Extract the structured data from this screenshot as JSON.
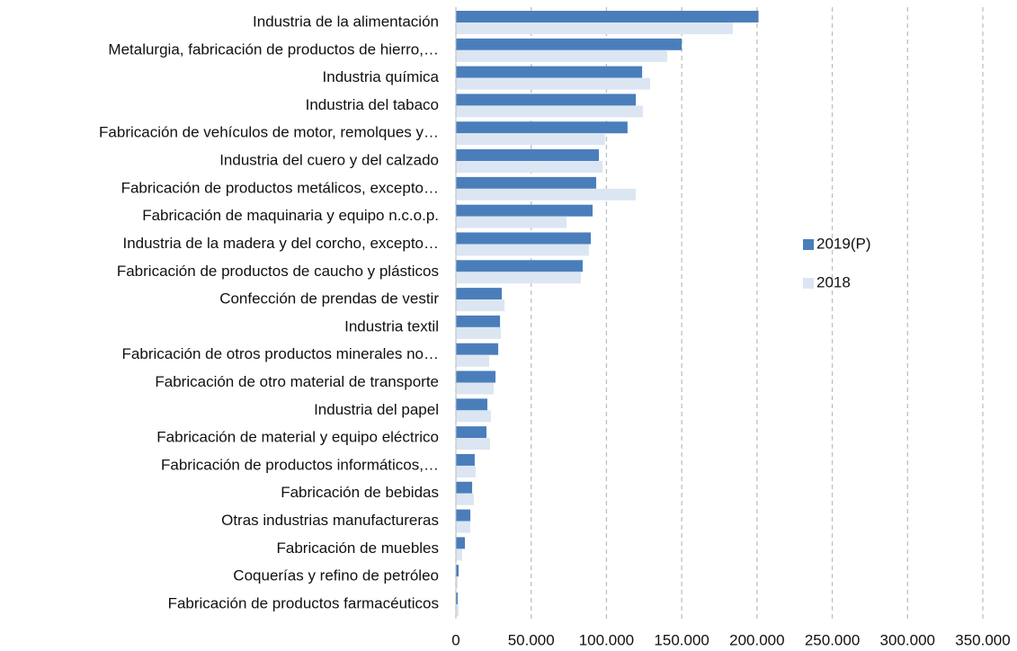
{
  "chart_data": {
    "type": "hbar",
    "categories": [
      "Industria de la alimentación",
      "Metalurgia, fabricación de productos de hierro,…",
      "Industria química",
      "Industria del tabaco",
      "Fabricación de vehículos de motor, remolques y…",
      "Industria del cuero y del calzado",
      "Fabricación de productos metálicos, excepto…",
      "Fabricación de maquinaria y equipo n.c.o.p.",
      "Industria de la madera y del corcho, excepto…",
      "Fabricación de productos de caucho y plásticos",
      "Confección de prendas de vestir",
      "Industria textil",
      "Fabricación de otros productos minerales no…",
      "Fabricación de otro material de transporte",
      "Industria del papel",
      "Fabricación de material y equipo eléctrico",
      "Fabricación de productos informáticos,…",
      "Fabricación de bebidas",
      "Otras industrias manufactureras",
      "Fabricación de muebles",
      "Coquerías y refino de petróleo",
      "Fabricación de productos farmacéuticos"
    ],
    "series": [
      {
        "name": "2019(P)",
        "color": "#4a7ebb",
        "values": [
          201000,
          150000,
          123700,
          119500,
          114000,
          95000,
          93200,
          90800,
          89600,
          84200,
          30500,
          29300,
          28100,
          26300,
          20900,
          20300,
          12500,
          10800,
          9600,
          6000,
          1800,
          1200
        ]
      },
      {
        "name": "2018",
        "color": "#dce6f2",
        "values": [
          184000,
          140400,
          129000,
          124300,
          99000,
          97400,
          119500,
          73500,
          88400,
          83000,
          32300,
          29900,
          22100,
          25100,
          23300,
          22700,
          13100,
          11900,
          9600,
          4200,
          1200,
          1800
        ]
      }
    ],
    "xlim": [
      0,
      350000
    ],
    "xticks": [
      0,
      {
        "value": 50000,
        "label": "50.000"
      },
      {
        "value": 100000,
        "label": "100.000"
      },
      {
        "value": 150000,
        "label": "150.000"
      },
      {
        "value": 200000,
        "label": "200.000"
      },
      {
        "value": 250000,
        "label": "250.000"
      },
      {
        "value": 300000,
        "label": "300.000"
      },
      {
        "value": 350000,
        "label": "350.000"
      }
    ],
    "grid": true,
    "legend": "right"
  }
}
